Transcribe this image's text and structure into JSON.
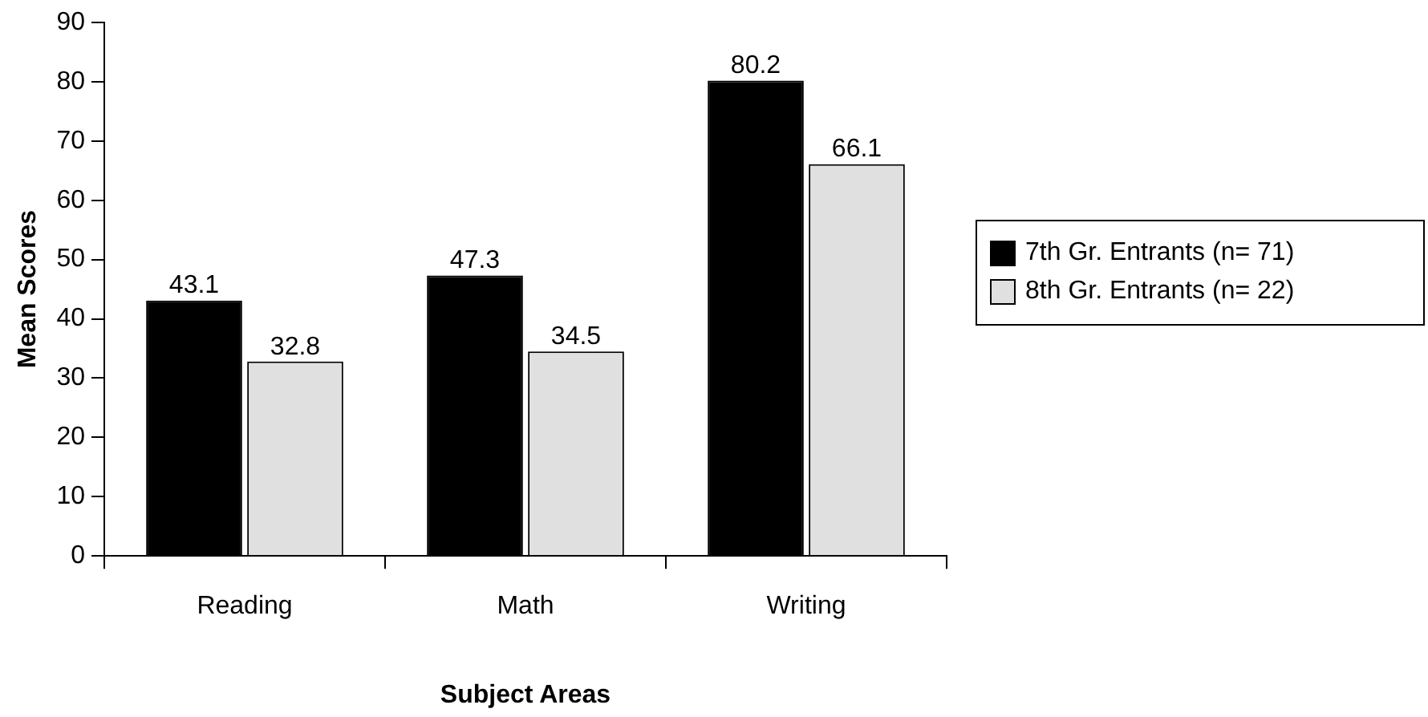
{
  "chart_data": {
    "type": "bar",
    "xlabel": "Subject Areas",
    "ylabel": "Mean Scores",
    "categories": [
      "Reading",
      "Math",
      "Writing"
    ],
    "series": [
      {
        "name": "7th Gr. Entrants (n= 71)",
        "color": "#000000",
        "values": [
          43.1,
          47.3,
          80.2
        ]
      },
      {
        "name": "8th Gr. Entrants (n= 22)",
        "color": "#e0e0e0",
        "values": [
          32.8,
          34.5,
          66.1
        ]
      }
    ],
    "ylim": [
      0,
      90
    ],
    "yticks": [
      0,
      10,
      20,
      30,
      40,
      50,
      60,
      70,
      80,
      90
    ],
    "grid": false,
    "legend": "right",
    "data_labels": true
  }
}
